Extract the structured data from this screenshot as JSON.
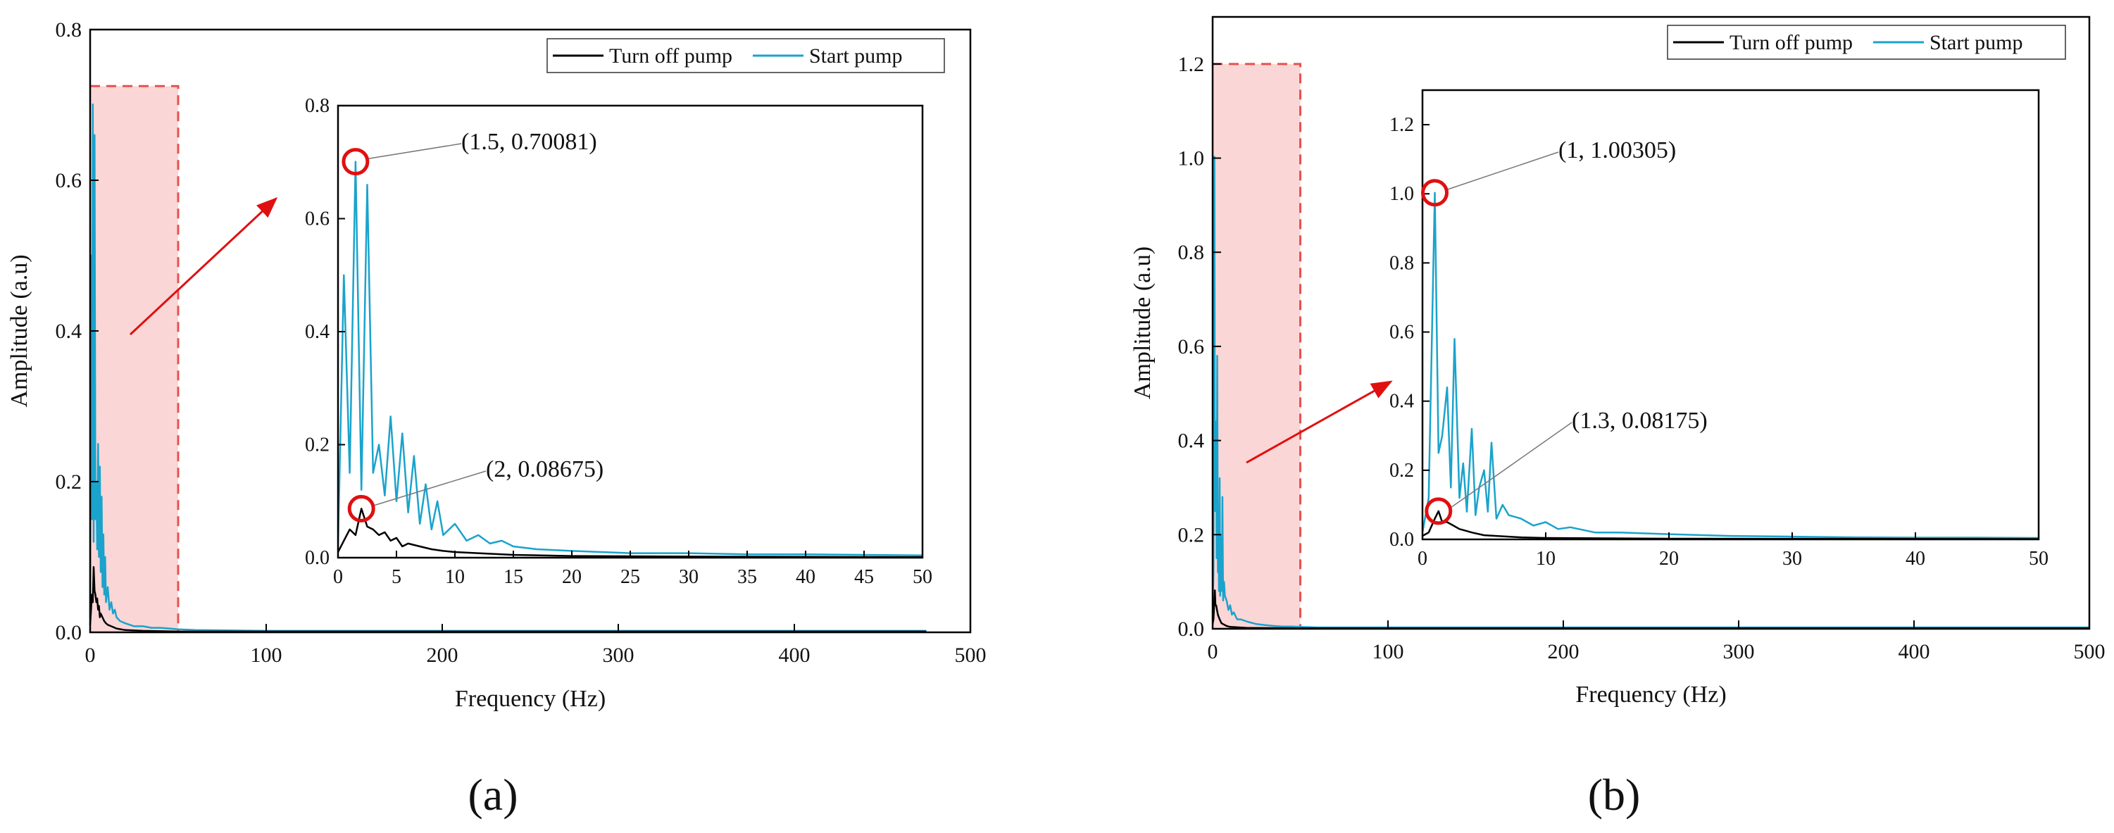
{
  "chart_data": [
    {
      "id": "a",
      "type": "line",
      "caption": "(a)",
      "xlabel": "Frequency (Hz)",
      "ylabel": "Amplitude (a.u)",
      "xlim": [
        0,
        500
      ],
      "ylim": [
        0,
        0.8
      ],
      "xticks": [
        0,
        100,
        200,
        300,
        400,
        500
      ],
      "yticks": [
        0.0,
        0.2,
        0.4,
        0.6,
        0.8
      ],
      "ytick_labels": [
        "0.0",
        "0.2",
        "0.4",
        "0.6",
        "0.8"
      ],
      "legend": {
        "position": "top-right",
        "entries": [
          "Turn off pump",
          "Start pump"
        ]
      },
      "highlight": {
        "x_range": [
          0,
          50
        ],
        "y_max": 0.725,
        "color": "#f8c8c8"
      },
      "series": [
        {
          "name": "Turn off pump",
          "color": "#000000",
          "points": [
            [
              0,
              0.01
            ],
            [
              0.5,
              0.03
            ],
            [
              1,
              0.05
            ],
            [
              1.5,
              0.04
            ],
            [
              2,
              0.08675
            ],
            [
              2.5,
              0.055
            ],
            [
              3,
              0.05
            ],
            [
              3.5,
              0.04
            ],
            [
              4,
              0.045
            ],
            [
              4.5,
              0.03
            ],
            [
              5,
              0.035
            ],
            [
              5.5,
              0.02
            ],
            [
              6,
              0.025
            ],
            [
              7,
              0.02
            ],
            [
              8,
              0.015
            ],
            [
              9,
              0.012
            ],
            [
              10,
              0.01
            ],
            [
              12,
              0.008
            ],
            [
              15,
              0.005
            ],
            [
              20,
              0.003
            ],
            [
              30,
              0.002
            ],
            [
              50,
              0.001
            ],
            [
              100,
              0.001
            ],
            [
              200,
              0.001
            ],
            [
              300,
              0.001
            ],
            [
              400,
              0.001
            ],
            [
              475,
              0.001
            ]
          ]
        },
        {
          "name": "Start pump",
          "color": "#1aa3cc",
          "points": [
            [
              0,
              0.02
            ],
            [
              0.5,
              0.5
            ],
            [
              1,
              0.15
            ],
            [
              1.5,
              0.70081
            ],
            [
              2,
              0.12
            ],
            [
              2.5,
              0.66
            ],
            [
              3,
              0.15
            ],
            [
              3.5,
              0.2
            ],
            [
              4,
              0.11
            ],
            [
              4.5,
              0.25
            ],
            [
              5,
              0.1
            ],
            [
              5.5,
              0.22
            ],
            [
              6,
              0.08
            ],
            [
              6.5,
              0.18
            ],
            [
              7,
              0.06
            ],
            [
              7.5,
              0.13
            ],
            [
              8,
              0.05
            ],
            [
              8.5,
              0.1
            ],
            [
              9,
              0.04
            ],
            [
              10,
              0.06
            ],
            [
              11,
              0.03
            ],
            [
              12,
              0.04
            ],
            [
              13,
              0.025
            ],
            [
              14,
              0.03
            ],
            [
              15,
              0.02
            ],
            [
              17,
              0.015
            ],
            [
              20,
              0.012
            ],
            [
              25,
              0.008
            ],
            [
              30,
              0.008
            ],
            [
              35,
              0.006
            ],
            [
              40,
              0.006
            ],
            [
              45,
              0.005
            ],
            [
              50,
              0.004
            ],
            [
              60,
              0.003
            ],
            [
              100,
              0.002
            ],
            [
              200,
              0.002
            ],
            [
              300,
              0.002
            ],
            [
              400,
              0.002
            ],
            [
              475,
              0.002
            ]
          ]
        }
      ],
      "inset": {
        "xlim": [
          0,
          50
        ],
        "ylim": [
          0,
          0.8
        ],
        "xticks": [
          0,
          5,
          10,
          15,
          20,
          25,
          30,
          35,
          40,
          45,
          50
        ],
        "yticks": [
          0.0,
          0.2,
          0.4,
          0.6,
          0.8
        ],
        "ytick_labels": [
          "0.0",
          "0.2",
          "0.4",
          "0.6",
          "0.8"
        ],
        "annotations": [
          {
            "label": "(1.5, 0.70081)",
            "x": 1.5,
            "y": 0.70081
          },
          {
            "label": "(2, 0.08675)",
            "x": 2,
            "y": 0.08675
          }
        ]
      }
    },
    {
      "id": "b",
      "type": "line",
      "caption": "(b)",
      "xlabel": "Frequency (Hz)",
      "ylabel": "Amplitude (a.u)",
      "xlim": [
        0,
        500
      ],
      "ylim": [
        0,
        1.3
      ],
      "xticks": [
        0,
        100,
        200,
        300,
        400,
        500
      ],
      "yticks": [
        0.0,
        0.2,
        0.4,
        0.6,
        0.8,
        1.0,
        1.2
      ],
      "ytick_labels": [
        "0.0",
        "0.2",
        "0.4",
        "0.6",
        "0.8",
        "1.0",
        "1.2"
      ],
      "legend": {
        "position": "top-right",
        "entries": [
          "Turn off pump",
          "Start pump"
        ]
      },
      "highlight": {
        "x_range": [
          0,
          50
        ],
        "y_max": 1.2,
        "color": "#f8c8c8"
      },
      "series": [
        {
          "name": "Turn off pump",
          "color": "#000000",
          "points": [
            [
              0,
              0.01
            ],
            [
              0.5,
              0.02
            ],
            [
              1,
              0.06
            ],
            [
              1.3,
              0.08175
            ],
            [
              1.6,
              0.05
            ],
            [
              2,
              0.05
            ],
            [
              2.5,
              0.04
            ],
            [
              3,
              0.03
            ],
            [
              3.5,
              0.025
            ],
            [
              4,
              0.02
            ],
            [
              5,
              0.012
            ],
            [
              6,
              0.01
            ],
            [
              8,
              0.006
            ],
            [
              10,
              0.004
            ],
            [
              15,
              0.003
            ],
            [
              20,
              0.002
            ],
            [
              50,
              0.001
            ],
            [
              100,
              0.001
            ],
            [
              200,
              0.001
            ],
            [
              300,
              0.001
            ],
            [
              400,
              0.001
            ],
            [
              500,
              0.001
            ]
          ]
        },
        {
          "name": "Start pump",
          "color": "#1aa3cc",
          "points": [
            [
              0,
              0.02
            ],
            [
              0.5,
              0.12
            ],
            [
              1,
              1.00305
            ],
            [
              1.3,
              0.25
            ],
            [
              1.6,
              0.3
            ],
            [
              2,
              0.44
            ],
            [
              2.3,
              0.15
            ],
            [
              2.6,
              0.58
            ],
            [
              3,
              0.12
            ],
            [
              3.3,
              0.22
            ],
            [
              3.6,
              0.08
            ],
            [
              4,
              0.32
            ],
            [
              4.3,
              0.07
            ],
            [
              4.6,
              0.15
            ],
            [
              5,
              0.2
            ],
            [
              5.3,
              0.08
            ],
            [
              5.6,
              0.28
            ],
            [
              6,
              0.06
            ],
            [
              6.5,
              0.1
            ],
            [
              7,
              0.07
            ],
            [
              8,
              0.06
            ],
            [
              9,
              0.04
            ],
            [
              10,
              0.05
            ],
            [
              11,
              0.03
            ],
            [
              12,
              0.035
            ],
            [
              14,
              0.02
            ],
            [
              16,
              0.02
            ],
            [
              20,
              0.015
            ],
            [
              25,
              0.01
            ],
            [
              30,
              0.008
            ],
            [
              35,
              0.006
            ],
            [
              40,
              0.005
            ],
            [
              45,
              0.005
            ],
            [
              50,
              0.004
            ],
            [
              60,
              0.003
            ],
            [
              100,
              0.003
            ],
            [
              200,
              0.003
            ],
            [
              300,
              0.003
            ],
            [
              400,
              0.003
            ],
            [
              500,
              0.003
            ]
          ]
        }
      ],
      "inset": {
        "xlim": [
          0,
          50
        ],
        "ylim": [
          0,
          1.3
        ],
        "xticks": [
          0,
          10,
          20,
          30,
          40,
          50
        ],
        "yticks": [
          0.0,
          0.2,
          0.4,
          0.6,
          0.8,
          1.0,
          1.2
        ],
        "ytick_labels": [
          "0.0",
          "0.2",
          "0.4",
          "0.6",
          "0.8",
          "1.0",
          "1.2"
        ],
        "annotations": [
          {
            "label": "(1, 1.00305)",
            "x": 1,
            "y": 1.00305
          },
          {
            "label": "(1.3, 0.08175)",
            "x": 1.3,
            "y": 0.08175
          }
        ]
      }
    }
  ]
}
